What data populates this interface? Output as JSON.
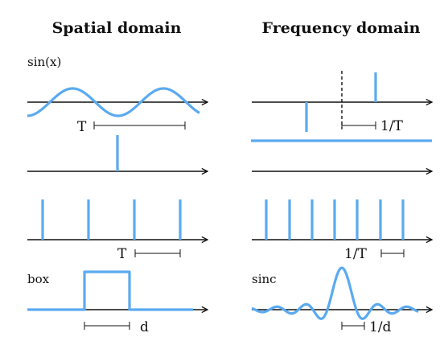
{
  "colors": {
    "accent": "#5aaaf0",
    "ink": "#111111",
    "background": "#ffffff"
  },
  "headings": {
    "spatial": "Spatial domain",
    "frequency": "Frequency domain"
  },
  "labels": {
    "sine": "sin(x)",
    "period_spatial": "T",
    "inv_period_freq": "1/T",
    "comb_period": "T",
    "comb_inv_period": "1/T",
    "box": "box",
    "sinc": "sinc",
    "box_width": "d",
    "sinc_inv_width": "1/d"
  }
}
